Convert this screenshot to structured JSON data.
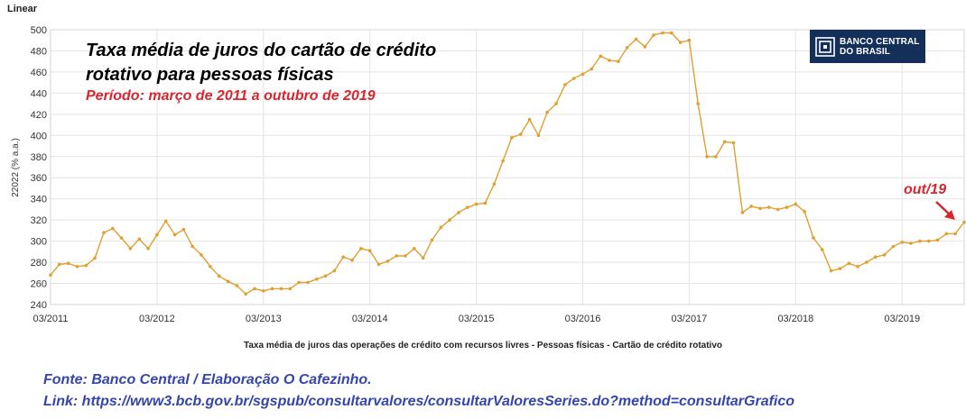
{
  "header": {
    "scale_label": "Linear"
  },
  "logo": {
    "line1": "BANCO CENTRAL",
    "line2": "DO BRASIL"
  },
  "chart_data": {
    "type": "line",
    "title_line1": "Taxa média de juros do cartão de crédito",
    "title_line2": "rotativo para pessoas físicas",
    "subtitle": "Período: março de 2011 a outubro de 2019",
    "ylabel": "22022 (% a.a.)",
    "xlabel": "Taxa média de juros das operações de crédito com recursos livres - Pessoas físicas - Cartão de crédito rotativo",
    "ylim": [
      240,
      500
    ],
    "yticks": [
      240,
      260,
      280,
      300,
      320,
      340,
      360,
      380,
      400,
      420,
      440,
      460,
      480,
      500
    ],
    "xticks": [
      "03/2011",
      "03/2012",
      "03/2013",
      "03/2014",
      "03/2015",
      "03/2016",
      "03/2017",
      "03/2018",
      "03/2019"
    ],
    "x_start": "03/2011",
    "x_end": "10/2019",
    "grid": true,
    "line_color": "#e0a030",
    "annotation": "out/19",
    "series": [
      {
        "values": [
          268,
          278,
          279,
          276,
          277,
          284,
          308,
          312,
          303,
          293,
          302,
          293,
          306,
          319,
          306,
          311,
          295,
          287,
          276,
          267,
          262,
          258,
          250,
          255,
          253,
          255,
          255,
          255,
          261,
          261,
          264,
          267,
          272,
          285,
          282,
          293,
          291,
          278,
          281,
          286,
          286,
          293,
          284,
          301,
          313,
          320,
          327,
          332,
          335,
          336,
          354,
          376,
          398,
          401,
          415,
          400,
          422,
          430,
          448,
          454,
          458,
          463,
          475,
          471,
          470,
          483,
          491,
          484,
          495,
          497,
          497,
          488,
          490,
          430,
          380,
          380,
          394,
          393,
          327,
          333,
          331,
          332,
          330,
          332,
          335,
          328,
          303,
          292,
          272,
          274,
          279,
          276,
          280,
          285,
          287,
          295,
          299,
          298,
          300,
          300,
          301,
          307,
          307,
          318
        ]
      }
    ]
  },
  "footer": {
    "source": "Fonte: Banco Central / Elaboração O Cafezinho.",
    "link": "Link: https://www3.bcb.gov.br/sgspub/consultarvalores/consultarValoresSeries.do?method=consultarGrafico"
  }
}
